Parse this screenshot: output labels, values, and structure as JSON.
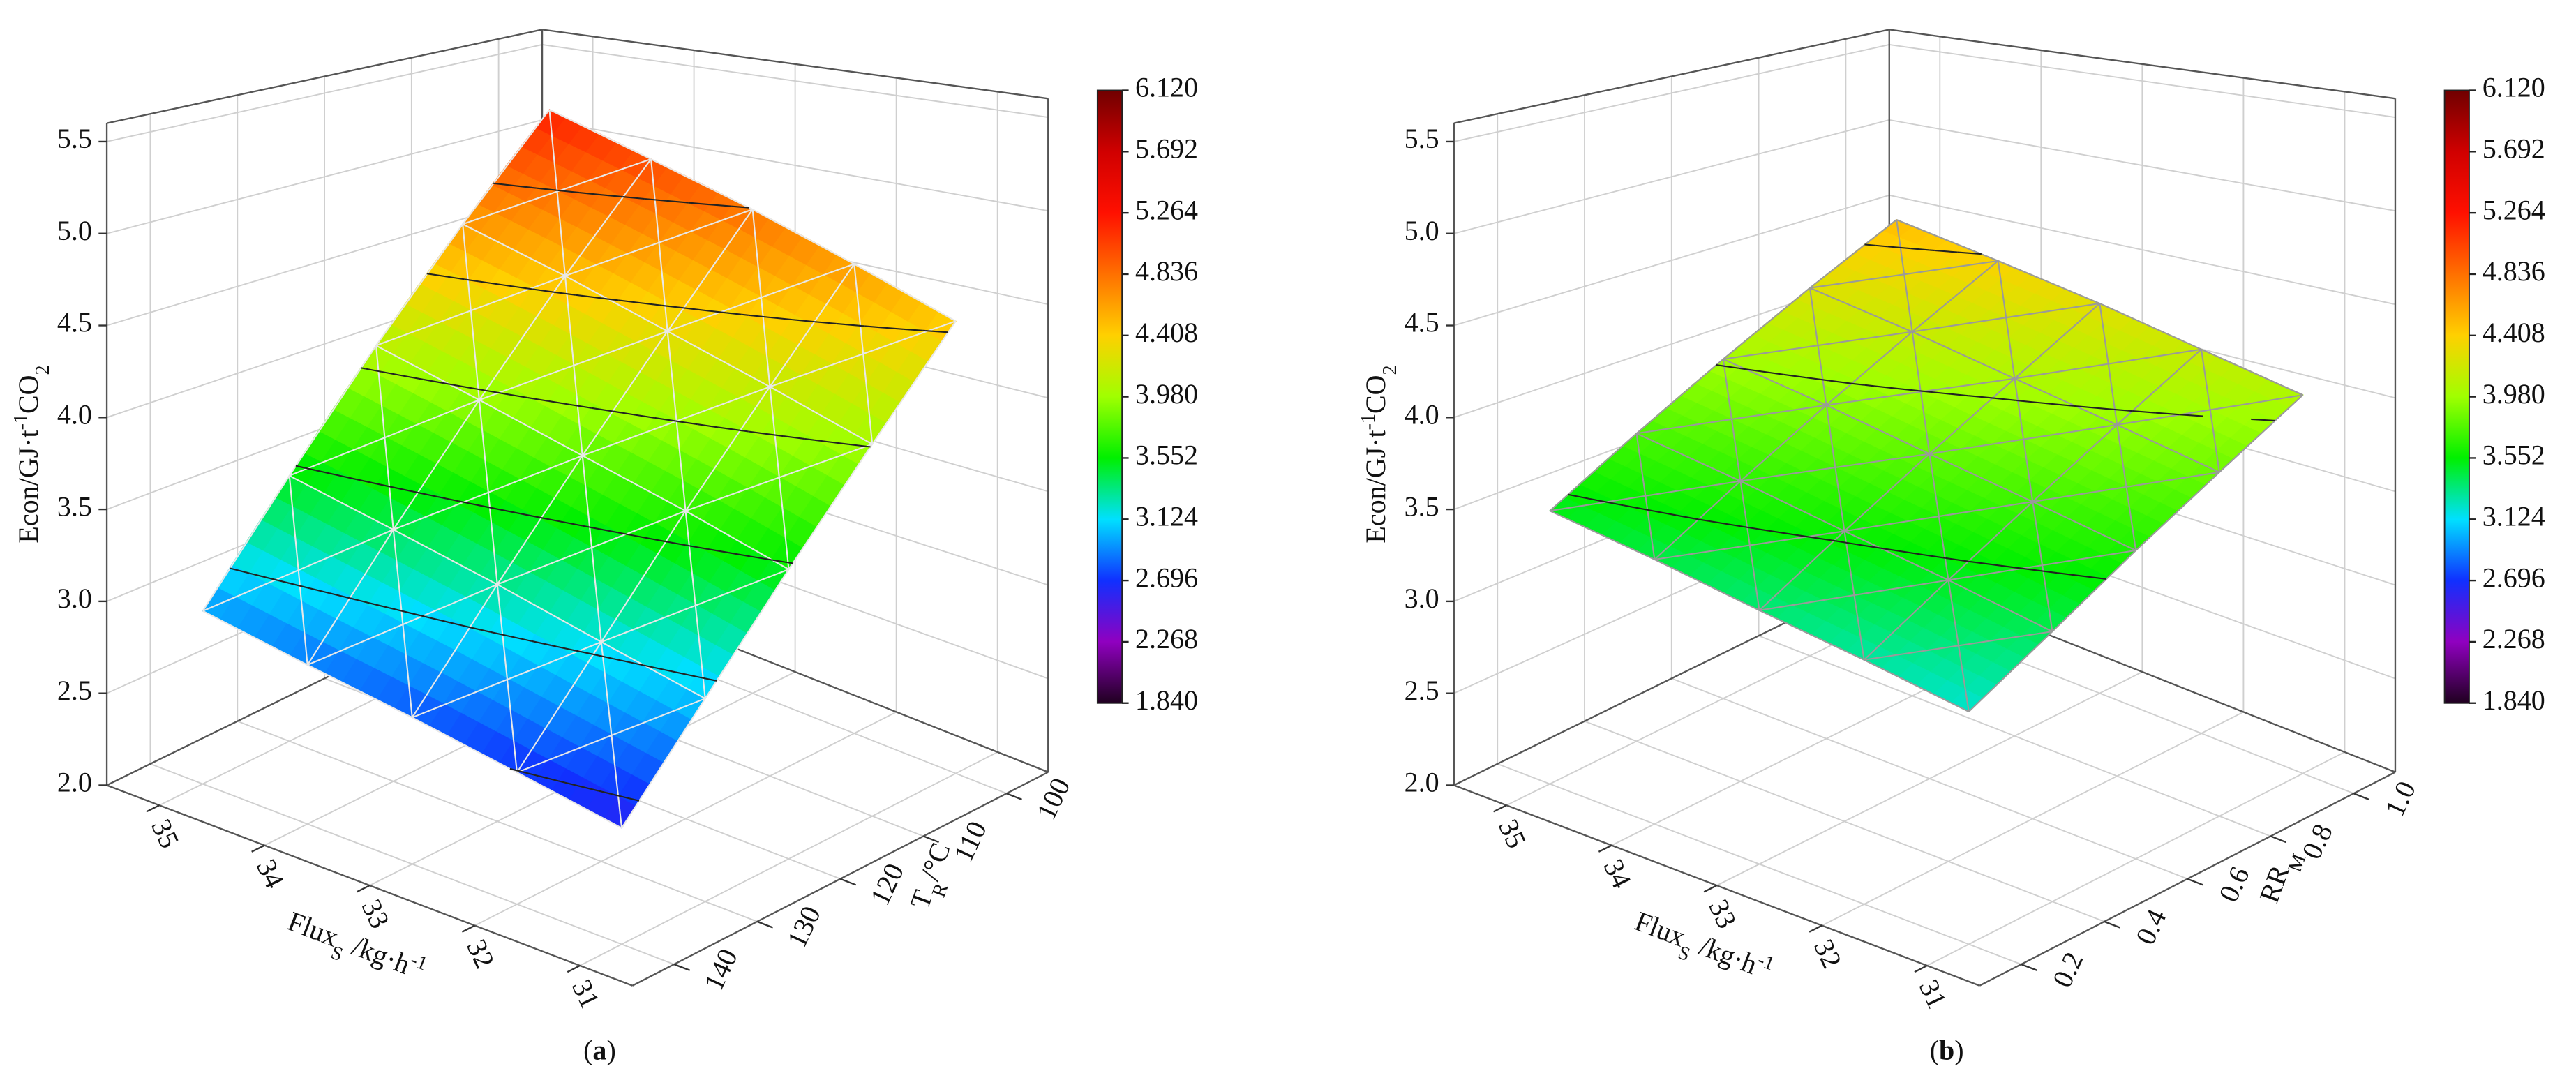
{
  "chart_data": [
    {
      "type": "surface3d",
      "title": [
        {
          "text": "("
        },
        {
          "text": "a",
          "bold": true
        },
        {
          "text": ")"
        }
      ],
      "x_label": [
        {
          "text": "Flux"
        },
        {
          "text": "S",
          "sub": true
        },
        {
          "text": " /kg·h"
        },
        {
          "text": "-1",
          "sup": true
        }
      ],
      "y_label": [
        {
          "text": "T"
        },
        {
          "text": "R",
          "sub": true
        },
        {
          "text": "/°C"
        }
      ],
      "z_label": [
        {
          "text": "Econ/GJ·t"
        },
        {
          "text": "-1",
          "sup": true
        },
        {
          "text": "CO"
        },
        {
          "text": "2",
          "sub": true
        }
      ],
      "x": [
        31,
        32,
        33,
        34,
        35
      ],
      "y": [
        100,
        110,
        120,
        130,
        140
      ],
      "z": [
        [
          4.45,
          4.64,
          4.83,
          5.01,
          5.2
        ],
        [
          3.99,
          4.15,
          4.31,
          4.48,
          4.64
        ],
        [
          3.53,
          3.67,
          3.8,
          3.94,
          4.08
        ],
        [
          3.06,
          3.17,
          3.29,
          3.4,
          3.51
        ],
        [
          2.6,
          2.69,
          2.78,
          2.86,
          2.95
        ]
      ],
      "xlim": [
        30.5,
        35.5
      ],
      "ylim": [
        145,
        95
      ],
      "zlim": [
        2,
        5.6
      ],
      "xticks": [
        31,
        32,
        33,
        34,
        35
      ],
      "yticks": [
        100,
        110,
        120,
        130,
        140
      ],
      "zticks": [
        {
          "value": 2,
          "label": "2.0"
        },
        2.5,
        {
          "value": 3,
          "label": "3.0"
        },
        3.5,
        {
          "value": 4,
          "label": "4.0"
        },
        4.5,
        {
          "value": 5,
          "label": "5.0"
        },
        5.5
      ],
      "clim": [
        1.84,
        6.12
      ],
      "cticks": [
        {
          "value": 1.84,
          "label": "1.840"
        },
        2.268,
        2.696,
        3.124,
        3.552,
        {
          "value": 3.98,
          "label": "3.980"
        },
        4.408,
        4.836,
        5.264,
        5.692,
        {
          "value": 6.12,
          "label": "6.120"
        }
      ],
      "colormap": [
        "#200020",
        "#9000c0",
        "#1030ff",
        "#00e0ff",
        "#00f000",
        "#a0ff00",
        "#ffd000",
        "#ff7000",
        "#ff1000",
        "#d00000",
        "#700000"
      ],
      "mesh_color": "#e8e8e8",
      "contours": true,
      "grid": true
    },
    {
      "type": "surface3d",
      "title": [
        {
          "text": "("
        },
        {
          "text": "b",
          "bold": true
        },
        {
          "text": ")"
        }
      ],
      "x_label": [
        {
          "text": "Flux"
        },
        {
          "text": "S",
          "sub": true
        },
        {
          "text": " /kg·h"
        },
        {
          "text": "-1",
          "sup": true
        }
      ],
      "y_label": [
        {
          "text": "RR"
        },
        {
          "text": "M",
          "sub": true
        }
      ],
      "z_label": [
        {
          "text": "Econ/GJ·t"
        },
        {
          "text": "-1",
          "sup": true
        },
        {
          "text": "CO"
        },
        {
          "text": "2",
          "sub": true
        }
      ],
      "x": [
        31,
        32,
        33,
        34,
        35
      ],
      "y": [
        0.2,
        0.4,
        0.6,
        0.8,
        1.0
      ],
      "z": [
        [
          3.2,
          3.28,
          3.35,
          3.43,
          3.5
        ],
        [
          3.41,
          3.5,
          3.58,
          3.67,
          3.75
        ],
        [
          3.63,
          3.72,
          3.81,
          3.91,
          4.0
        ],
        [
          3.84,
          3.94,
          4.04,
          4.15,
          4.25
        ],
        [
          4.05,
          4.16,
          4.28,
          4.39,
          4.5
        ]
      ],
      "xlim": [
        30.5,
        35.5
      ],
      "ylim": [
        0.1,
        1.1
      ],
      "zlim": [
        2,
        5.6
      ],
      "xticks": [
        31,
        32,
        33,
        34,
        35
      ],
      "yticks": [
        0.2,
        0.4,
        0.6,
        0.8,
        {
          "value": 1,
          "label": "1.0"
        }
      ],
      "zticks": [
        {
          "value": 2,
          "label": "2.0"
        },
        2.5,
        {
          "value": 3,
          "label": "3.0"
        },
        3.5,
        {
          "value": 4,
          "label": "4.0"
        },
        4.5,
        {
          "value": 5,
          "label": "5.0"
        },
        5.5
      ],
      "clim": [
        1.84,
        6.12
      ],
      "cticks": [
        {
          "value": 1.84,
          "label": "1.840"
        },
        2.268,
        2.696,
        3.124,
        3.552,
        {
          "value": 3.98,
          "label": "3.980"
        },
        4.408,
        4.836,
        5.264,
        5.692,
        {
          "value": 6.12,
          "label": "6.120"
        }
      ],
      "colormap": [
        "#200020",
        "#9000c0",
        "#1030ff",
        "#00e0ff",
        "#00f000",
        "#a0ff00",
        "#ffd000",
        "#ff7000",
        "#ff1000",
        "#d00000",
        "#700000"
      ],
      "mesh_color": "#9a9a9a",
      "contours": true,
      "grid": true
    }
  ]
}
